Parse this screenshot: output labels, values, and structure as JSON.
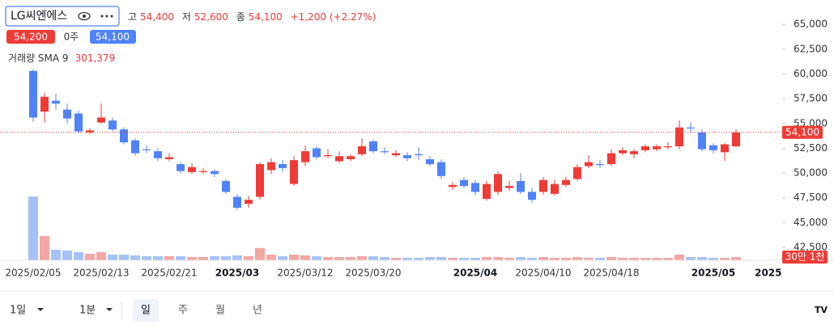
{
  "chart_data": {
    "type": "candlestick",
    "title": "LG씨엔에스",
    "legend": {
      "high_label": "고",
      "high": "54,400",
      "low_label": "저",
      "low": "52,600",
      "close_label": "종",
      "close": "54,100",
      "change": "+1,200 (+2.27%)",
      "ask": "54,200",
      "quantity": "0주",
      "bid": "54,100",
      "volume_name": "거래량 SMA 9",
      "volume_value": "301,379"
    },
    "categories": [
      "2025/02/05",
      null,
      null,
      null,
      null,
      null,
      "2025/02/13",
      null,
      null,
      null,
      null,
      null,
      "2025/02/21",
      null,
      null,
      null,
      null,
      null,
      "2025/03",
      null,
      null,
      null,
      null,
      null,
      "2025/03/12",
      null,
      null,
      null,
      null,
      null,
      "2025/03/20",
      null,
      null,
      null,
      null,
      null,
      null,
      null,
      null,
      "2025/04",
      null,
      null,
      null,
      null,
      null,
      "2025/04/10",
      null,
      null,
      null,
      null,
      null,
      "2025/04/18",
      null,
      null,
      null,
      null,
      null,
      null,
      null,
      null,
      "2025/05",
      null,
      null,
      null,
      null,
      "2025/"
    ],
    "open": [
      60300,
      56200,
      57300,
      56400,
      56000,
      54100,
      55100,
      55300,
      54400,
      53300,
      52400,
      52200,
      51400,
      50900,
      50100,
      50100,
      50200,
      49200,
      47600,
      46900,
      47600,
      50300,
      50900,
      48900,
      51100,
      52500,
      51700,
      51200,
      51400,
      51900,
      53200,
      52200,
      51800,
      51800,
      51900,
      51400,
      51100,
      48600,
      49300,
      49000,
      47400,
      48100,
      48500,
      49200,
      48100,
      48100,
      47900,
      48800,
      49400,
      50700,
      50900,
      50900,
      52000,
      51900,
      52300,
      52400,
      52600,
      52700,
      54600,
      54100,
      52800,
      52100,
      52700,
      null,
      null,
      null
    ],
    "high": [
      60500,
      58100,
      58000,
      57000,
      56300,
      54500,
      57000,
      55600,
      54600,
      53500,
      52800,
      52500,
      52000,
      51100,
      51000,
      50500,
      50400,
      49400,
      47900,
      47700,
      51100,
      51500,
      51300,
      51700,
      52800,
      52700,
      52400,
      52200,
      51900,
      53500,
      53400,
      52600,
      52300,
      52100,
      52600,
      51700,
      51400,
      49100,
      49600,
      49300,
      49200,
      50200,
      49200,
      50000,
      48500,
      49600,
      49300,
      49600,
      50900,
      51800,
      51300,
      52400,
      52600,
      52400,
      52900,
      52900,
      53100,
      55300,
      55100,
      54400,
      53000,
      53000,
      54400,
      null,
      null,
      null
    ],
    "low": [
      55200,
      55100,
      56400,
      55000,
      54000,
      53900,
      55000,
      54200,
      52900,
      51800,
      52000,
      51200,
      51200,
      50000,
      49900,
      49900,
      49600,
      47900,
      46300,
      46500,
      47300,
      49900,
      50100,
      48700,
      50700,
      51400,
      51500,
      51000,
      51200,
      51700,
      52000,
      51900,
      51600,
      51200,
      51300,
      50700,
      49400,
      48300,
      48500,
      47800,
      47200,
      47800,
      48200,
      47900,
      47000,
      47800,
      47700,
      48600,
      49200,
      50500,
      50500,
      50700,
      51800,
      51500,
      52100,
      52200,
      52400,
      52400,
      54100,
      52200,
      52000,
      51200,
      52600,
      null,
      null,
      null
    ],
    "close": [
      55600,
      57700,
      57000,
      55500,
      54200,
      54300,
      55600,
      54400,
      53100,
      52000,
      52300,
      51500,
      51600,
      50200,
      50600,
      50200,
      49900,
      48100,
      46500,
      47300,
      50900,
      51100,
      50500,
      51300,
      52200,
      51600,
      51800,
      51700,
      51700,
      52700,
      52200,
      52100,
      52000,
      51500,
      51800,
      50900,
      49700,
      48800,
      48700,
      48100,
      48900,
      49900,
      48700,
      48100,
      47300,
      49300,
      48900,
      49300,
      50600,
      51100,
      50800,
      52000,
      52300,
      52200,
      52700,
      52700,
      52700,
      54600,
      54500,
      52400,
      52300,
      52900,
      54100,
      null,
      null,
      null
    ],
    "volume": [
      5900000,
      2250000,
      980000,
      900000,
      750000,
      600000,
      750000,
      530000,
      530000,
      450000,
      380000,
      380000,
      375000,
      375000,
      300000,
      300000,
      375000,
      375000,
      450000,
      375000,
      1130000,
      525000,
      375000,
      525000,
      450000,
      375000,
      300000,
      300000,
      300000,
      375000,
      375000,
      300000,
      225000,
      225000,
      225000,
      300000,
      300000,
      225000,
      225000,
      225000,
      300000,
      300000,
      225000,
      300000,
      225000,
      300000,
      225000,
      225000,
      300000,
      225000,
      225000,
      300000,
      225000,
      225000,
      225000,
      225000,
      225000,
      525000,
      300000,
      300000,
      225000,
      225000,
      301379,
      null,
      null,
      null
    ],
    "price_label": "54,100",
    "volume_label": "30만 1천",
    "ylim": [
      41200,
      67050
    ],
    "yticks": [
      {
        "value": 42500,
        "label": "42,500"
      },
      {
        "value": 45000,
        "label": "45,000"
      },
      {
        "value": 47500,
        "label": "47,500"
      },
      {
        "value": 50000,
        "label": "50,000"
      },
      {
        "value": 52500,
        "label": "52,500"
      },
      {
        "value": 55000,
        "label": "55,000"
      },
      {
        "value": 57500,
        "label": "57,500"
      },
      {
        "value": 60000,
        "label": "60,000"
      },
      {
        "value": 62500,
        "label": "62,500"
      },
      {
        "value": 65000,
        "label": "65,000"
      }
    ],
    "up_color": "#ef3b36",
    "down_color": "#4f82f5",
    "volume_up_color": "#f4a6a3",
    "volume_down_color": "#a6c1f7"
  },
  "toolbar": {
    "interval": "1일",
    "minute": "1분",
    "ranges": [
      "일",
      "주",
      "월",
      "년"
    ]
  }
}
